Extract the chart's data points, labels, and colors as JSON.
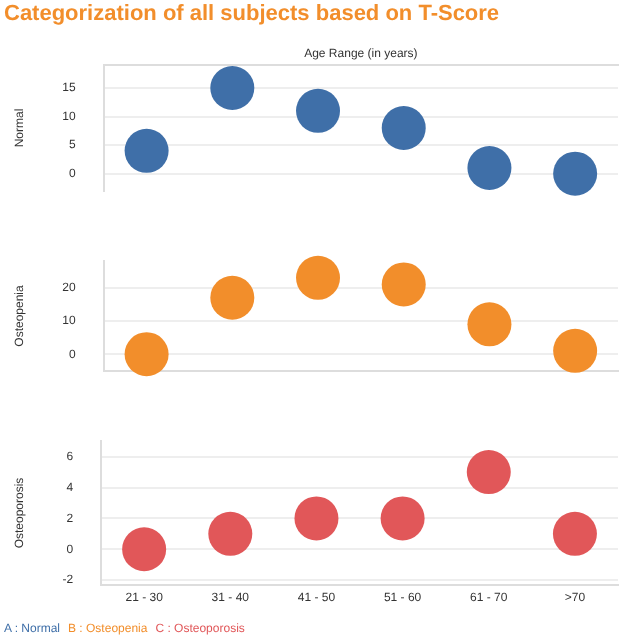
{
  "chart_data": [
    {
      "type": "scatter",
      "title": "Categorization of all subjects based on T-Score",
      "xlabel": "Age Range (in years)",
      "ylabel": "Normal",
      "categories": [
        null,
        null,
        null,
        null,
        null,
        null
      ],
      "series": [
        {
          "name": "A : Normal",
          "color": "#3f6fa8",
          "values": [
            4,
            15,
            11,
            8,
            1,
            0
          ]
        }
      ],
      "ylim": [
        -3,
        19
      ],
      "yticks": [
        0,
        5,
        10,
        15
      ],
      "grid": "y",
      "marker": "circle",
      "tick_labels": "y",
      "legend": "bottom left"
    },
    {
      "type": "scatter",
      "ylabel": "Osteopenia",
      "categories": [
        null,
        null,
        null,
        null,
        null,
        null
      ],
      "series": [
        {
          "name": "B : Osteopenia",
          "color": "#f28e2b",
          "values": [
            0,
            17,
            23,
            21,
            9,
            1
          ]
        }
      ],
      "ylim": [
        -5,
        28
      ],
      "yticks": [
        0,
        10,
        20
      ],
      "grid": "y",
      "marker": "circle",
      "tick_labels": "y",
      "legend": "bottom left"
    },
    {
      "type": "scatter",
      "ylabel": "Osteoporosis",
      "categories": [
        "21 - 30",
        "31 - 40",
        "41 - 50",
        "51 - 60",
        "61 - 70",
        ">70"
      ],
      "series": [
        {
          "name": "C : Osteoporosis",
          "color": "#e15759",
          "values": [
            0,
            1,
            2,
            2,
            5,
            1
          ]
        }
      ],
      "ylim": [
        -2.3,
        7
      ],
      "yticks": [
        -2,
        0,
        2,
        4,
        6
      ],
      "grid": "y",
      "marker": "circle",
      "legend": "bottom left"
    }
  ]
}
